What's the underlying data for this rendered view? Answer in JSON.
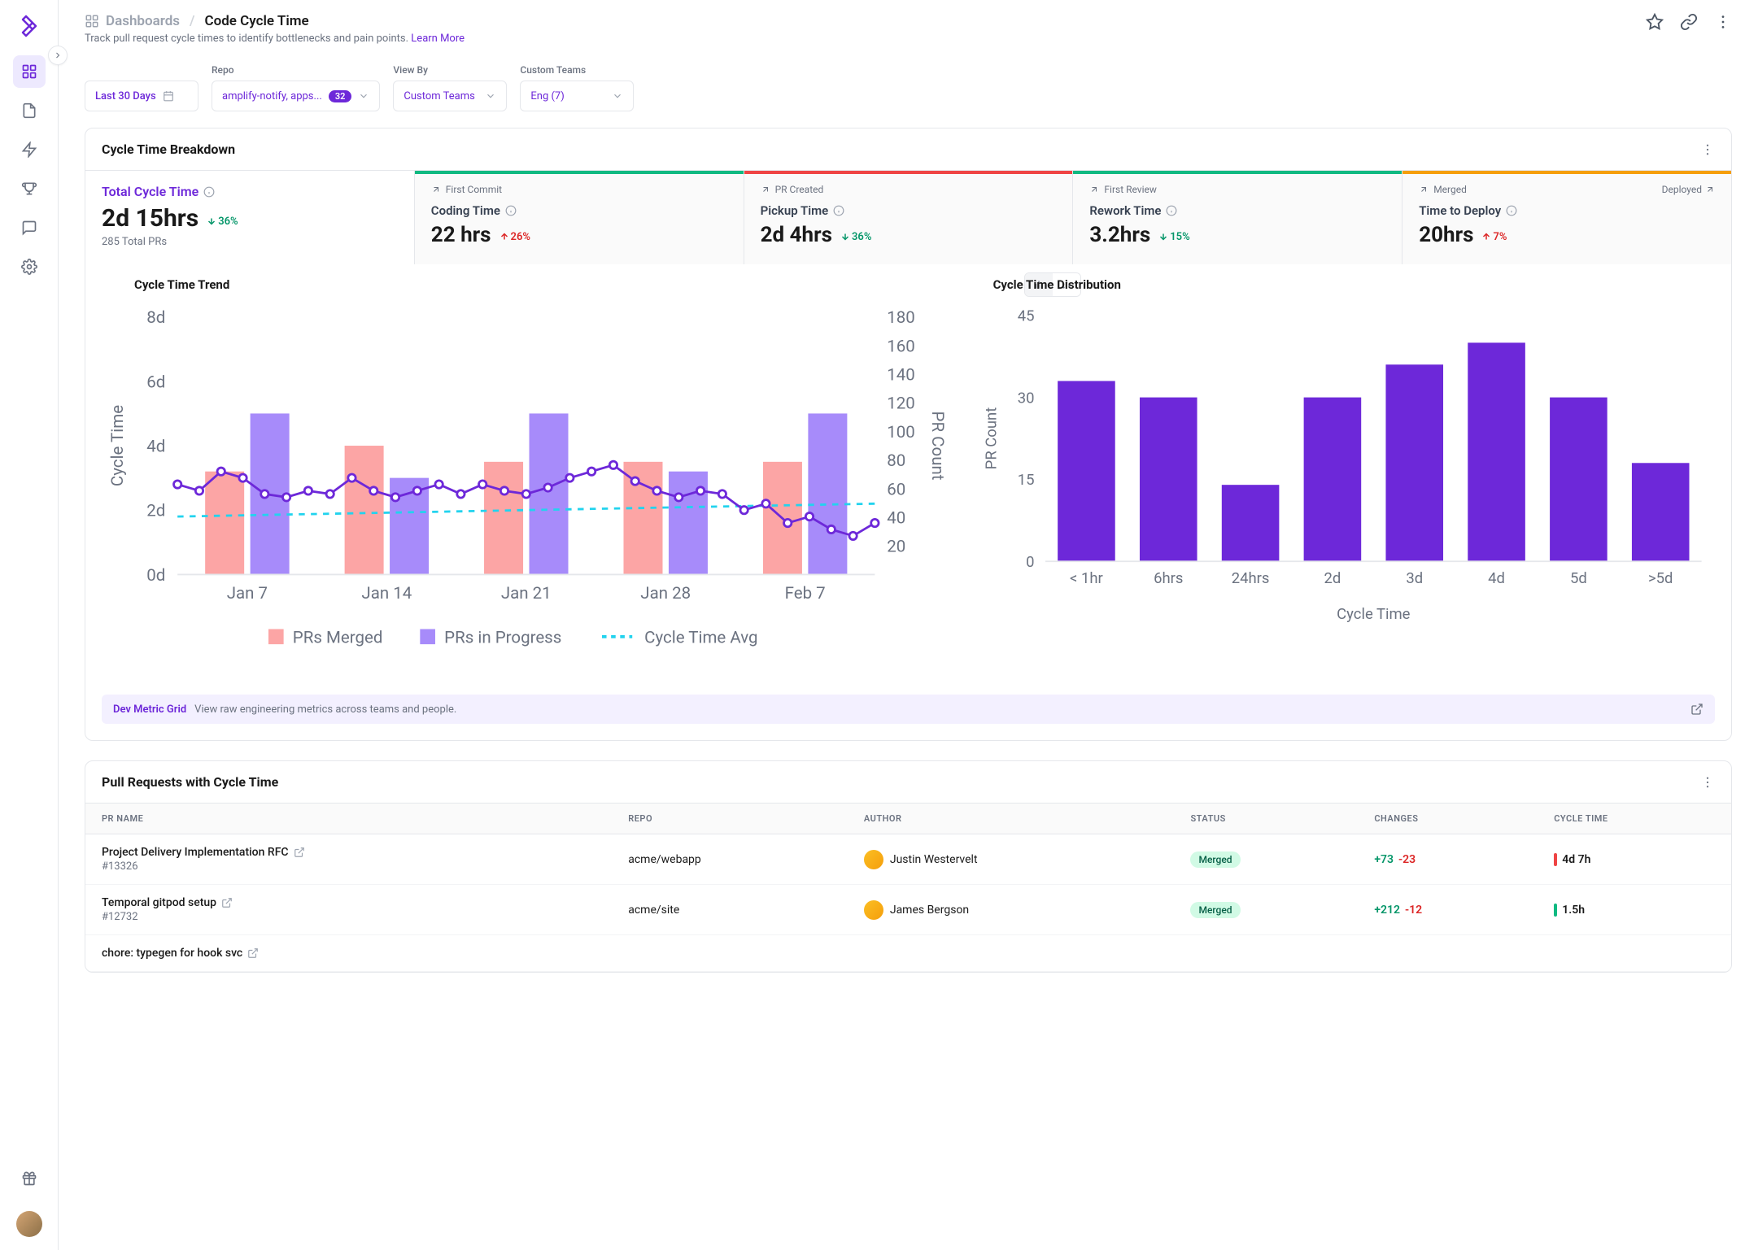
{
  "breadcrumb": {
    "root": "Dashboards",
    "current": "Code Cycle Time"
  },
  "subtitle": {
    "text": "Track pull request cycle times to identify bottlenecks and pain points.",
    "link": "Learn More"
  },
  "filters": {
    "date": "Last 30 Days",
    "repo": {
      "label": "Repo",
      "value": "amplify-notify, apps...",
      "count": "32"
    },
    "viewby": {
      "label": "View By",
      "value": "Custom Teams"
    },
    "teams": {
      "label": "Custom Teams",
      "value": "Eng (7)"
    }
  },
  "breakdown": {
    "title": "Cycle Time Breakdown",
    "total": {
      "name": "Total Cycle Time",
      "value": "2d 15hrs",
      "delta": "36%",
      "delta_dir": "down",
      "sub": "285 Total PRs"
    },
    "stages": [
      {
        "stage": "First Commit",
        "name": "Coding Time",
        "value": "22 hrs",
        "delta": "26%",
        "delta_dir": "up",
        "bar_color": "#10b981"
      },
      {
        "stage": "PR Created",
        "name": "Pickup Time",
        "value": "2d 4hrs",
        "delta": "36%",
        "delta_dir": "down",
        "bar_color": "#ef4444"
      },
      {
        "stage": "First Review",
        "name": "Rework Time",
        "value": "3.2hrs",
        "delta": "15%",
        "delta_dir": "down",
        "bar_color": "#10b981"
      },
      {
        "stage": "Merged",
        "stage_right": "Deployed",
        "name": "Time to Deploy",
        "value": "20hrs",
        "delta": "7%",
        "delta_dir": "up",
        "bar_color": "#f59e0b"
      }
    ]
  },
  "trend_chart": {
    "title": "Cycle Time Trend",
    "y_left_label": "Cycle Time",
    "y_right_label": "PR Count",
    "y_left_ticks": [
      "0d",
      "2d",
      "4d",
      "6d",
      "8d"
    ],
    "y_right_ticks": [
      "20",
      "40",
      "60",
      "80",
      "100",
      "120",
      "140",
      "160",
      "180"
    ],
    "y_left_max": 8,
    "y_right_max": 180,
    "x_labels": [
      "Jan 7",
      "Jan 14",
      "Jan 21",
      "Jan 28",
      "Feb 7"
    ],
    "bars_merged_color": "#fca5a5",
    "bars_progress_color": "#a78bfa",
    "line_color": "#6d28d9",
    "avg_line_color": "#22d3ee",
    "legend": [
      "PRs Merged",
      "PRs in Progress",
      "Cycle Time Avg"
    ],
    "groups": [
      {
        "merged": 3.2,
        "progress": 5.0
      },
      {
        "merged": 4.0,
        "progress": 3.0
      },
      {
        "merged": 3.5,
        "progress": 5.0
      },
      {
        "merged": 3.5,
        "progress": 3.2
      },
      {
        "merged": 3.5,
        "progress": 5.0
      }
    ],
    "line_points": [
      2.8,
      2.6,
      3.2,
      3.0,
      2.5,
      2.4,
      2.6,
      2.5,
      3.0,
      2.6,
      2.4,
      2.6,
      2.8,
      2.5,
      2.8,
      2.6,
      2.5,
      2.7,
      3.0,
      3.2,
      3.4,
      2.9,
      2.6,
      2.4,
      2.6,
      2.5,
      2.0,
      2.2,
      1.6,
      1.8,
      1.4,
      1.2,
      1.6
    ],
    "avg_line_y": 1.8,
    "avg_line_slope": 0.4
  },
  "dist_chart": {
    "title": "Cycle Time Distribution",
    "y_label": "PR Count",
    "x_label": "Cycle Time",
    "y_ticks": [
      "0",
      "15",
      "30",
      "45"
    ],
    "y_max": 45,
    "bar_color": "#6d28d9",
    "categories": [
      "< 1hr",
      "6hrs",
      "24hrs",
      "2d",
      "3d",
      "4d",
      "5d",
      ">5d"
    ],
    "values": [
      33,
      30,
      14,
      30,
      36,
      40,
      30,
      18
    ]
  },
  "dev_metric": {
    "title": "Dev Metric Grid",
    "desc": "View raw engineering metrics across teams and people."
  },
  "pr_table": {
    "title": "Pull Requests with Cycle Time",
    "columns": [
      "PR NAME",
      "REPO",
      "AUTHOR",
      "STATUS",
      "CHANGES",
      "CYCLE TIME"
    ],
    "rows": [
      {
        "name": "Project Delivery Implementation RFC",
        "id": "#13326",
        "repo": "acme/webapp",
        "author": "Justin Westervelt",
        "status": "Merged",
        "add": "+73",
        "del": "-23",
        "cycle": "4d 7h",
        "bar": "#ef4444"
      },
      {
        "name": "Temporal gitpod setup",
        "id": "#12732",
        "repo": "acme/site",
        "author": "James Bergson",
        "status": "Merged",
        "add": "+212",
        "del": "-12",
        "cycle": "1.5h",
        "bar": "#10b981"
      },
      {
        "name": "chore: typegen for hook svc",
        "id": "",
        "repo": "",
        "author": "",
        "status": "",
        "add": "",
        "del": "",
        "cycle": "",
        "bar": ""
      }
    ]
  }
}
